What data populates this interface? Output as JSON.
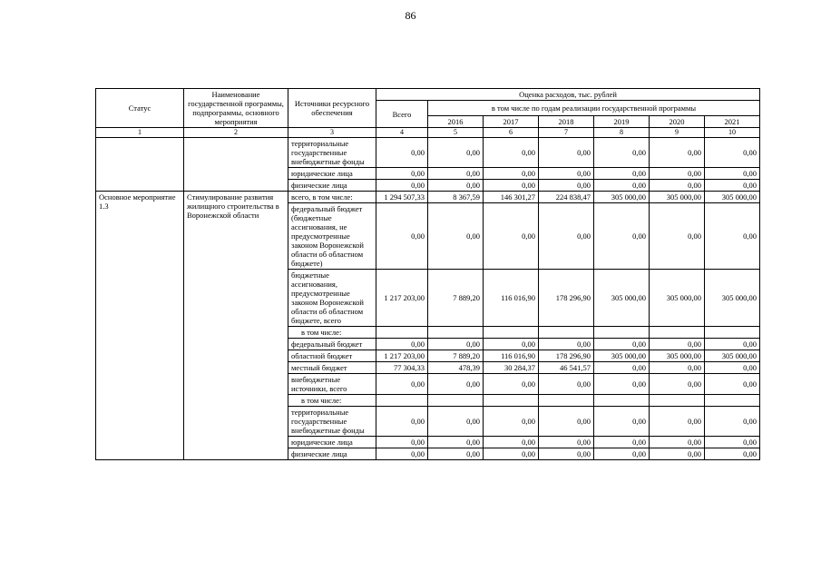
{
  "page": {
    "number": "86"
  },
  "table": {
    "headers": {
      "status": "Статус",
      "program": "Наименование государственной программы, подпрограммы, основного мероприятия",
      "sources": "Источники ресурсного обеспечения",
      "expenses": "Оценка расходов, тыс. рублей",
      "total": "Всего",
      "by_years": "в том числе по годам реализации государственной программы",
      "years": [
        "2016",
        "2017",
        "2018",
        "2019",
        "2020",
        "2021"
      ],
      "column_numbers": [
        "1",
        "2",
        "3",
        "4",
        "5",
        "6",
        "7",
        "8",
        "9",
        "10"
      ]
    },
    "groups": [
      {
        "status": "",
        "program": "",
        "rows": [
          {
            "source": "территориальные государственные внебюджетные фонды",
            "values": [
              "0,00",
              "0,00",
              "0,00",
              "0,00",
              "0,00",
              "0,00",
              "0,00"
            ]
          },
          {
            "source": "юридические лица",
            "values": [
              "0,00",
              "0,00",
              "0,00",
              "0,00",
              "0,00",
              "0,00",
              "0,00"
            ]
          },
          {
            "source": "физические лица",
            "values": [
              "0,00",
              "0,00",
              "0,00",
              "0,00",
              "0,00",
              "0,00",
              "0,00"
            ]
          }
        ]
      },
      {
        "status": "Основное мероприятие 1.3",
        "program": "Стимулирование развития жилищного строительства в Воронежской области",
        "rows": [
          {
            "source": "всего, в том числе:",
            "values": [
              "1 294 507,33",
              "8 367,59",
              "146 301,27",
              "224 838,47",
              "305 000,00",
              "305 000,00",
              "305 000,00"
            ]
          },
          {
            "source": "федеральный бюджет (бюджетные ассигнования, не предусмотренные законом Воронежской области об областном бюджете)",
            "values": [
              "0,00",
              "0,00",
              "0,00",
              "0,00",
              "0,00",
              "0,00",
              "0,00"
            ]
          },
          {
            "source": "бюджетные ассигнования, предусмотренные законом Воронежской области об областном бюджете, всего",
            "values": [
              "1 217 203,00",
              "7 889,20",
              "116 016,90",
              "178 296,90",
              "305 000,00",
              "305 000,00",
              "305 000,00"
            ]
          },
          {
            "source": "в том числе:",
            "subheader": true,
            "values": [
              "",
              "",
              "",
              "",
              "",
              "",
              ""
            ]
          },
          {
            "source": "федеральный бюджет",
            "values": [
              "0,00",
              "0,00",
              "0,00",
              "0,00",
              "0,00",
              "0,00",
              "0,00"
            ]
          },
          {
            "source": "областной бюджет",
            "values": [
              "1 217 203,00",
              "7 889,20",
              "116 016,90",
              "178 296,90",
              "305 000,00",
              "305 000,00",
              "305 000,00"
            ]
          },
          {
            "source": "местный бюджет",
            "values": [
              "77 304,33",
              "478,39",
              "30 284,37",
              "46 541,57",
              "0,00",
              "0,00",
              "0,00"
            ]
          },
          {
            "source": "внебюджетные источники, всего",
            "values": [
              "0,00",
              "0,00",
              "0,00",
              "0,00",
              "0,00",
              "0,00",
              "0,00"
            ]
          },
          {
            "source": "в том числе:",
            "subheader": true,
            "values": [
              "",
              "",
              "",
              "",
              "",
              "",
              ""
            ]
          },
          {
            "source": "территориальные государственные внебюджетные фонды",
            "values": [
              "0,00",
              "0,00",
              "0,00",
              "0,00",
              "0,00",
              "0,00",
              "0,00"
            ]
          },
          {
            "source": "юридические лица",
            "values": [
              "0,00",
              "0,00",
              "0,00",
              "0,00",
              "0,00",
              "0,00",
              "0,00"
            ]
          },
          {
            "source": "физические лица",
            "values": [
              "0,00",
              "0,00",
              "0,00",
              "0,00",
              "0,00",
              "0,00",
              "0,00"
            ]
          }
        ]
      }
    ]
  }
}
